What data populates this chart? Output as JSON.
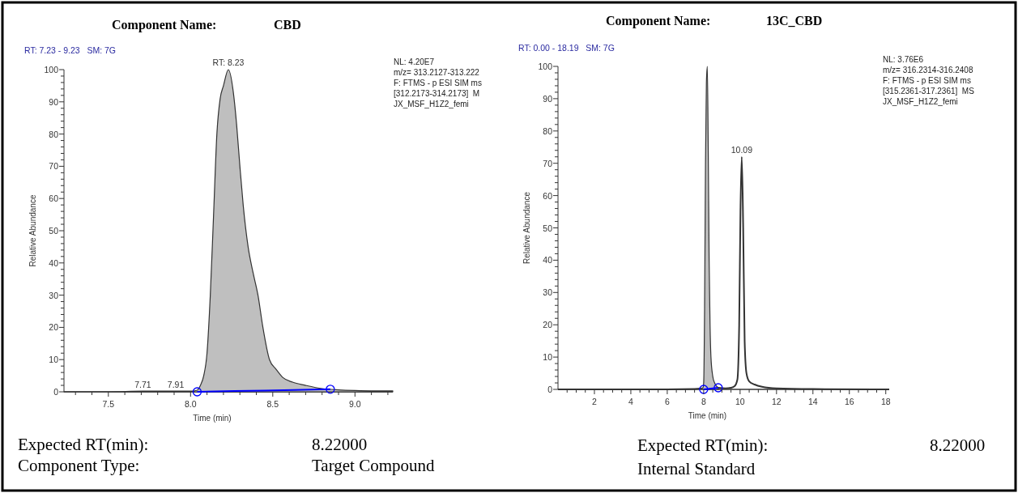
{
  "chart_data": [
    {
      "type": "area",
      "title": "Component Name:",
      "subtitle": "CBD",
      "xlabel": "Time (min)",
      "ylabel": "Relative Abundance",
      "annotations": [
        "RT: 7.23 - 9.23   SM: 7G",
        "NL: 4.20E7",
        "m/z= 313.2127-313.222",
        "F: FTMS - p ESI SIM ms",
        "[312.2173-314.2173]  M",
        "JX_MSF_H1Z2_femi",
        "Expected RT(min):",
        "8.22000",
        "Component Type:",
        "Target Compound",
        {
          "text": "RT: 8.23",
          "x": 8.23,
          "y": 100
        },
        {
          "text": "7.71",
          "x": 7.71,
          "y": 0
        },
        {
          "text": "7.91",
          "x": 7.91,
          "y": 0
        }
      ],
      "xlim": [
        7.23,
        9.23
      ],
      "xticks": [
        {
          "value": 7.3,
          "label": null
        },
        {
          "value": 7.4,
          "label": null
        },
        {
          "value": 7.5,
          "label": "7.5"
        },
        {
          "value": 7.6,
          "label": null
        },
        {
          "value": 7.7,
          "label": null
        },
        {
          "value": 7.8,
          "label": null
        },
        {
          "value": 7.9,
          "label": null
        },
        {
          "value": 8.0,
          "label": "8.0"
        },
        {
          "value": 8.1,
          "label": null
        },
        {
          "value": 8.2,
          "label": null
        },
        {
          "value": 8.3,
          "label": null
        },
        {
          "value": 8.4,
          "label": null
        },
        {
          "value": 8.5,
          "label": "8.5"
        },
        {
          "value": 8.6,
          "label": null
        },
        {
          "value": 8.7,
          "label": null
        },
        {
          "value": 8.8,
          "label": null
        },
        {
          "value": 8.9,
          "label": null
        },
        {
          "value": 9.0,
          "label": "9.0"
        },
        {
          "value": 9.1,
          "label": null
        },
        {
          "value": 9.2,
          "label": null
        }
      ],
      "ylim": [
        0,
        100
      ],
      "yticks": [
        0,
        {
          "value": 2,
          "label": null
        },
        {
          "value": 4,
          "label": null
        },
        {
          "value": 6,
          "label": null
        },
        {
          "value": 8,
          "label": null
        },
        10,
        {
          "value": 12,
          "label": null
        },
        {
          "value": 14,
          "label": null
        },
        {
          "value": 16,
          "label": null
        },
        {
          "value": 18,
          "label": null
        },
        20,
        {
          "value": 22,
          "label": null
        },
        {
          "value": 24,
          "label": null
        },
        {
          "value": 26,
          "label": null
        },
        {
          "value": 28,
          "label": null
        },
        30,
        {
          "value": 32,
          "label": null
        },
        {
          "value": 34,
          "label": null
        },
        {
          "value": 36,
          "label": null
        },
        {
          "value": 38,
          "label": null
        },
        40,
        {
          "value": 42,
          "label": null
        },
        {
          "value": 44,
          "label": null
        },
        {
          "value": 46,
          "label": null
        },
        {
          "value": 48,
          "label": null
        },
        50,
        {
          "value": 52,
          "label": null
        },
        {
          "value": 54,
          "label": null
        },
        {
          "value": 56,
          "label": null
        },
        {
          "value": 58,
          "label": null
        },
        60,
        {
          "value": 62,
          "label": null
        },
        {
          "value": 64,
          "label": null
        },
        {
          "value": 66,
          "label": null
        },
        {
          "value": 68,
          "label": null
        },
        70,
        {
          "value": 72,
          "label": null
        },
        {
          "value": 74,
          "label": null
        },
        {
          "value": 76,
          "label": null
        },
        {
          "value": 78,
          "label": null
        },
        80,
        {
          "value": 82,
          "label": null
        },
        {
          "value": 84,
          "label": null
        },
        {
          "value": 86,
          "label": null
        },
        {
          "value": 88,
          "label": null
        },
        90,
        {
          "value": 92,
          "label": null
        },
        {
          "value": 94,
          "label": null
        },
        {
          "value": 96,
          "label": null
        },
        {
          "value": 98,
          "label": null
        },
        100
      ],
      "series": [
        {
          "type": "area",
          "color": "#bfbfbf",
          "x": [
            7.23,
            7.5,
            7.71,
            7.91,
            8.0,
            8.04,
            8.06,
            8.08,
            8.1,
            8.12,
            8.14,
            8.16,
            8.18,
            8.2,
            8.23,
            8.26,
            8.28,
            8.3,
            8.32,
            8.35,
            8.38,
            8.41,
            8.44,
            8.48,
            8.52,
            8.56,
            8.62,
            8.7,
            8.8,
            8.9,
            9.0,
            9.1,
            9.23
          ],
          "values": [
            0,
            0,
            0.2,
            0.2,
            0.2,
            0.5,
            2,
            5,
            12,
            30,
            55,
            80,
            91,
            95,
            100,
            93,
            83,
            70,
            58,
            45,
            37,
            30,
            20,
            10,
            7,
            4.5,
            3,
            2,
            1,
            0.6,
            0.4,
            0.3,
            0.3
          ]
        },
        {
          "type": "scatter",
          "color": "#0000ff",
          "marker": "circle",
          "x": [
            8.04,
            8.85
          ],
          "values": [
            0,
            0.8
          ]
        },
        {
          "type": "line",
          "color": "#0000ff",
          "x": [
            8.04,
            8.45,
            8.85
          ],
          "values": [
            0,
            0.4,
            0.8
          ]
        }
      ]
    },
    {
      "type": "area",
      "title": "Component Name:",
      "subtitle": "13C_CBD",
      "xlabel": "Time (min)",
      "ylabel": "Relative Abundance",
      "annotations": [
        "RT: 0.00 - 18.19   SM: 7G",
        "NL: 3.76E6",
        "m/z= 316.2314-316.2408",
        "F: FTMS - p ESI SIM ms",
        "[315.2361-317.2361]  MS",
        "JX_MSF_H1Z2_femi",
        "Expected RT(min):",
        "8.22000",
        "Internal Standard",
        {
          "text": "10.09",
          "x": 10.09,
          "y": 72
        }
      ],
      "xlim": [
        0,
        18.19
      ],
      "xticks": [
        {
          "value": 0.5,
          "label": null
        },
        {
          "value": 1,
          "label": null
        },
        {
          "value": 1.5,
          "label": null
        },
        2,
        {
          "value": 2.5,
          "label": null
        },
        {
          "value": 3,
          "label": null
        },
        {
          "value": 3.5,
          "label": null
        },
        4,
        {
          "value": 4.5,
          "label": null
        },
        {
          "value": 5,
          "label": null
        },
        {
          "value": 5.5,
          "label": null
        },
        6,
        {
          "value": 6.5,
          "label": null
        },
        {
          "value": 7,
          "label": null
        },
        {
          "value": 7.5,
          "label": null
        },
        8,
        {
          "value": 8.5,
          "label": null
        },
        {
          "value": 9,
          "label": null
        },
        {
          "value": 9.5,
          "label": null
        },
        10,
        {
          "value": 10.5,
          "label": null
        },
        {
          "value": 11,
          "label": null
        },
        {
          "value": 11.5,
          "label": null
        },
        12,
        {
          "value": 12.5,
          "label": null
        },
        {
          "value": 13,
          "label": null
        },
        {
          "value": 13.5,
          "label": null
        },
        14,
        {
          "value": 14.5,
          "label": null
        },
        {
          "value": 15,
          "label": null
        },
        {
          "value": 15.5,
          "label": null
        },
        16,
        {
          "value": 16.5,
          "label": null
        },
        {
          "value": 17,
          "label": null
        },
        {
          "value": 17.5,
          "label": null
        },
        18
      ],
      "ylim": [
        0,
        100
      ],
      "yticks": [
        0,
        {
          "value": 2,
          "label": null
        },
        {
          "value": 4,
          "label": null
        },
        {
          "value": 6,
          "label": null
        },
        {
          "value": 8,
          "label": null
        },
        10,
        {
          "value": 12,
          "label": null
        },
        {
          "value": 14,
          "label": null
        },
        {
          "value": 16,
          "label": null
        },
        {
          "value": 18,
          "label": null
        },
        20,
        {
          "value": 22,
          "label": null
        },
        {
          "value": 24,
          "label": null
        },
        {
          "value": 26,
          "label": null
        },
        {
          "value": 28,
          "label": null
        },
        30,
        {
          "value": 32,
          "label": null
        },
        {
          "value": 34,
          "label": null
        },
        {
          "value": 36,
          "label": null
        },
        {
          "value": 38,
          "label": null
        },
        40,
        {
          "value": 42,
          "label": null
        },
        {
          "value": 44,
          "label": null
        },
        {
          "value": 46,
          "label": null
        },
        {
          "value": 48,
          "label": null
        },
        50,
        {
          "value": 52,
          "label": null
        },
        {
          "value": 54,
          "label": null
        },
        {
          "value": 56,
          "label": null
        },
        {
          "value": 58,
          "label": null
        },
        60,
        {
          "value": 62,
          "label": null
        },
        {
          "value": 64,
          "label": null
        },
        {
          "value": 66,
          "label": null
        },
        {
          "value": 68,
          "label": null
        },
        70,
        {
          "value": 72,
          "label": null
        },
        {
          "value": 74,
          "label": null
        },
        {
          "value": 76,
          "label": null
        },
        {
          "value": 78,
          "label": null
        },
        80,
        {
          "value": 82,
          "label": null
        },
        {
          "value": 84,
          "label": null
        },
        {
          "value": 86,
          "label": null
        },
        {
          "value": 88,
          "label": null
        },
        90,
        {
          "value": 92,
          "label": null
        },
        {
          "value": 94,
          "label": null
        },
        {
          "value": 96,
          "label": null
        },
        {
          "value": 98,
          "label": null
        },
        100
      ],
      "series": [
        {
          "type": "area",
          "color": "#bfbfbf",
          "x": [
            7.9,
            7.96,
            8.0,
            8.05,
            8.1,
            8.15,
            8.2,
            8.25,
            8.3,
            8.35,
            8.4,
            8.5,
            8.6,
            8.8
          ],
          "values": [
            0.3,
            0.5,
            2,
            25,
            70,
            95,
            100,
            75,
            40,
            20,
            10,
            4,
            2,
            0.5
          ]
        },
        {
          "type": "line",
          "color": "#333333",
          "x": [
            0,
            2,
            4,
            6,
            7.5,
            7.9,
            8.3,
            8.8,
            9.2,
            9.5,
            9.7,
            9.85,
            9.95,
            10.02,
            10.09,
            10.17,
            10.25,
            10.35,
            10.5,
            10.8,
            11.2,
            12,
            14,
            18.19
          ],
          "values": [
            0,
            0,
            0,
            0,
            0.1,
            0.3,
            null,
            0.5,
            0.3,
            0.5,
            1,
            3,
            20,
            55,
            72,
            50,
            15,
            5,
            2.5,
            1.5,
            0.8,
            0.3,
            0.1,
            0
          ]
        },
        {
          "type": "scatter",
          "color": "#0000ff",
          "marker": "circle",
          "x": [
            8.0,
            8.8
          ],
          "values": [
            0,
            0.5
          ]
        },
        {
          "type": "line",
          "color": "#0000ff",
          "x": [
            8.0,
            8.4,
            8.8
          ],
          "values": [
            0,
            0.25,
            0.5
          ]
        }
      ]
    }
  ]
}
